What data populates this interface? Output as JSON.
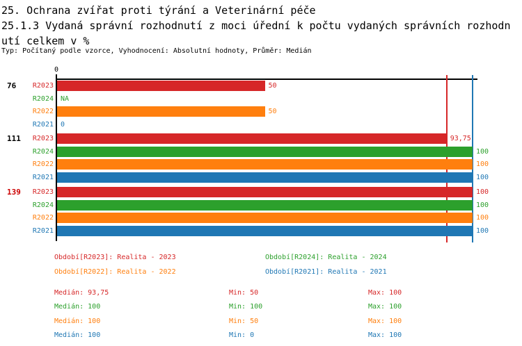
{
  "header": {
    "title": "25. Ochrana zvířat proti týrání a Veterinární péče",
    "subtitle_line1": "25.1.3 Vydaná správní rozhodnutí z moci úřední k počtu vydaných správních rozhodn",
    "subtitle_line2": "utí celkem v %",
    "meta": "Typ: Počítaný podle vzorce, Vyhodnocení: Absolutní hodnoty, Průměr: Medián"
  },
  "chart_data": {
    "type": "bar",
    "orientation": "horizontal",
    "value_unit": "%",
    "axis": {
      "tick_label": "0",
      "min": 0,
      "max": 100
    },
    "reference_lines": [
      {
        "value": 93.75,
        "color": "#d62728"
      },
      {
        "value": 100,
        "color": "#1f77b4"
      }
    ],
    "series_colors": {
      "R2023": "#d62728",
      "R2024": "#2ca02c",
      "R2022": "#ff7f0e",
      "R2021": "#1f77b4"
    },
    "groups": [
      {
        "label": "76",
        "label_color": "#000000",
        "rows": [
          {
            "series": "R2023",
            "value": 50,
            "display": "50"
          },
          {
            "series": "R2024",
            "value": null,
            "display": "NA"
          },
          {
            "series": "R2022",
            "value": 50,
            "display": "50"
          },
          {
            "series": "R2021",
            "value": 0,
            "display": "0"
          }
        ]
      },
      {
        "label": "111",
        "label_color": "#000000",
        "rows": [
          {
            "series": "R2023",
            "value": 93.75,
            "display": "93,75"
          },
          {
            "series": "R2024",
            "value": 100,
            "display": "100"
          },
          {
            "series": "R2022",
            "value": 100,
            "display": "100"
          },
          {
            "series": "R2021",
            "value": 100,
            "display": "100"
          }
        ]
      },
      {
        "label": "139",
        "label_color": "#cc0000",
        "rows": [
          {
            "series": "R2023",
            "value": 100,
            "display": "100"
          },
          {
            "series": "R2024",
            "value": 100,
            "display": "100"
          },
          {
            "series": "R2022",
            "value": 100,
            "display": "100"
          },
          {
            "series": "R2021",
            "value": 100,
            "display": "100"
          }
        ]
      }
    ]
  },
  "legend": [
    {
      "label": "Období[R2023]: Realita - 2023",
      "color": "#d62728"
    },
    {
      "label": "Období[R2024]: Realita - 2024",
      "color": "#2ca02c"
    },
    {
      "label": "Období[R2022]: Realita - 2022",
      "color": "#ff7f0e"
    },
    {
      "label": "Období[R2021]: Realita - 2021",
      "color": "#1f77b4"
    }
  ],
  "stats": [
    {
      "median": "Medián: 93,75",
      "min": "Min: 50",
      "max": "Max: 100",
      "color": "#d62728"
    },
    {
      "median": "Medián: 100",
      "min": "Min: 100",
      "max": "Max: 100",
      "color": "#2ca02c"
    },
    {
      "median": "Medián: 100",
      "min": "Min: 50",
      "max": "Max: 100",
      "color": "#ff7f0e"
    },
    {
      "median": "Medián: 100",
      "min": "Min: 0",
      "max": "Max: 100",
      "color": "#1f77b4"
    }
  ]
}
